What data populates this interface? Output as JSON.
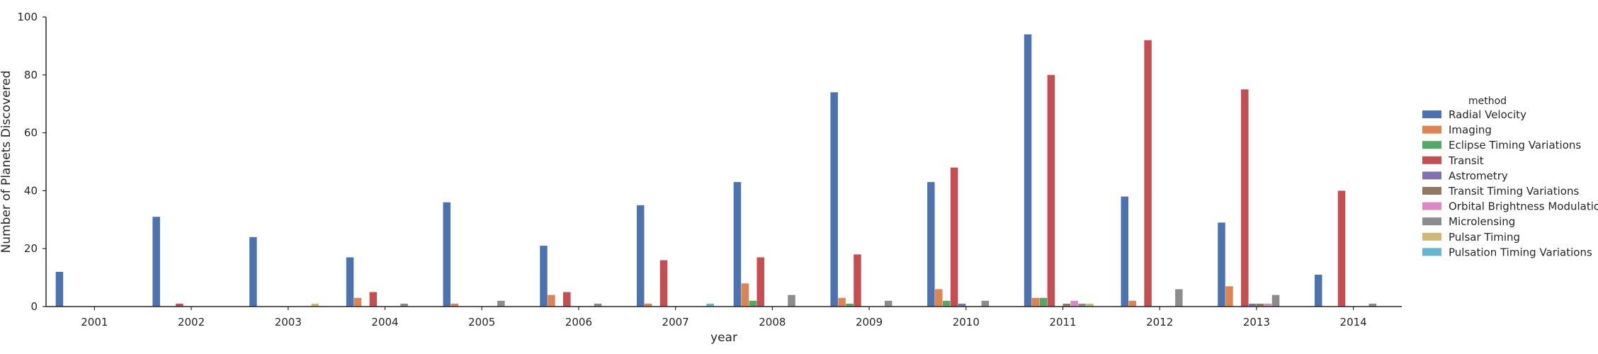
{
  "chart_data": {
    "type": "bar",
    "xlabel": "year",
    "ylabel": "Number of Planets Discovered",
    "ylim": [
      0,
      100
    ],
    "yticks": [
      0,
      20,
      40,
      60,
      80,
      100
    ],
    "grid": false,
    "legend_title": "method",
    "legend_position": "right",
    "categories": [
      "2001",
      "2002",
      "2003",
      "2004",
      "2005",
      "2006",
      "2007",
      "2008",
      "2009",
      "2010",
      "2011",
      "2012",
      "2013",
      "2014"
    ],
    "series": [
      {
        "name": "Radial Velocity",
        "color": "#4c72b0",
        "values": [
          12,
          31,
          24,
          17,
          36,
          21,
          35,
          43,
          74,
          43,
          94,
          38,
          29,
          11
        ]
      },
      {
        "name": "Imaging",
        "color": "#dd8452",
        "values": [
          0,
          0,
          0,
          3,
          1,
          4,
          1,
          8,
          3,
          6,
          3,
          2,
          7,
          0
        ]
      },
      {
        "name": "Eclipse Timing Variations",
        "color": "#55a868",
        "values": [
          0,
          0,
          0,
          0,
          0,
          0,
          0,
          2,
          1,
          2,
          3,
          0,
          0,
          0
        ]
      },
      {
        "name": "Transit",
        "color": "#c44e52",
        "values": [
          0,
          1,
          0,
          5,
          0,
          5,
          16,
          17,
          18,
          48,
          80,
          92,
          75,
          40
        ]
      },
      {
        "name": "Astrometry",
        "color": "#8172b3",
        "values": [
          0,
          0,
          0,
          0,
          0,
          0,
          0,
          0,
          0,
          1,
          0,
          0,
          1,
          0
        ]
      },
      {
        "name": "Transit Timing Variations",
        "color": "#937860",
        "values": [
          0,
          0,
          0,
          0,
          0,
          0,
          0,
          0,
          0,
          0,
          1,
          0,
          1,
          0
        ]
      },
      {
        "name": "Orbital Brightness Modulation",
        "color": "#da8bc3",
        "values": [
          0,
          0,
          0,
          0,
          0,
          0,
          0,
          0,
          0,
          0,
          2,
          0,
          1,
          0
        ]
      },
      {
        "name": "Microlensing",
        "color": "#8c8c8c",
        "values": [
          0,
          0,
          0,
          1,
          2,
          1,
          0,
          4,
          2,
          2,
          1,
          6,
          4,
          1
        ]
      },
      {
        "name": "Pulsar Timing",
        "color": "#ccb974",
        "values": [
          0,
          0,
          1,
          0,
          0,
          0,
          0,
          0,
          0,
          0,
          1,
          0,
          0,
          0
        ]
      },
      {
        "name": "Pulsation Timing Variations",
        "color": "#64b5cd",
        "values": [
          0,
          0,
          0,
          0,
          0,
          0,
          1,
          0,
          0,
          0,
          0,
          0,
          0,
          0
        ]
      }
    ]
  }
}
